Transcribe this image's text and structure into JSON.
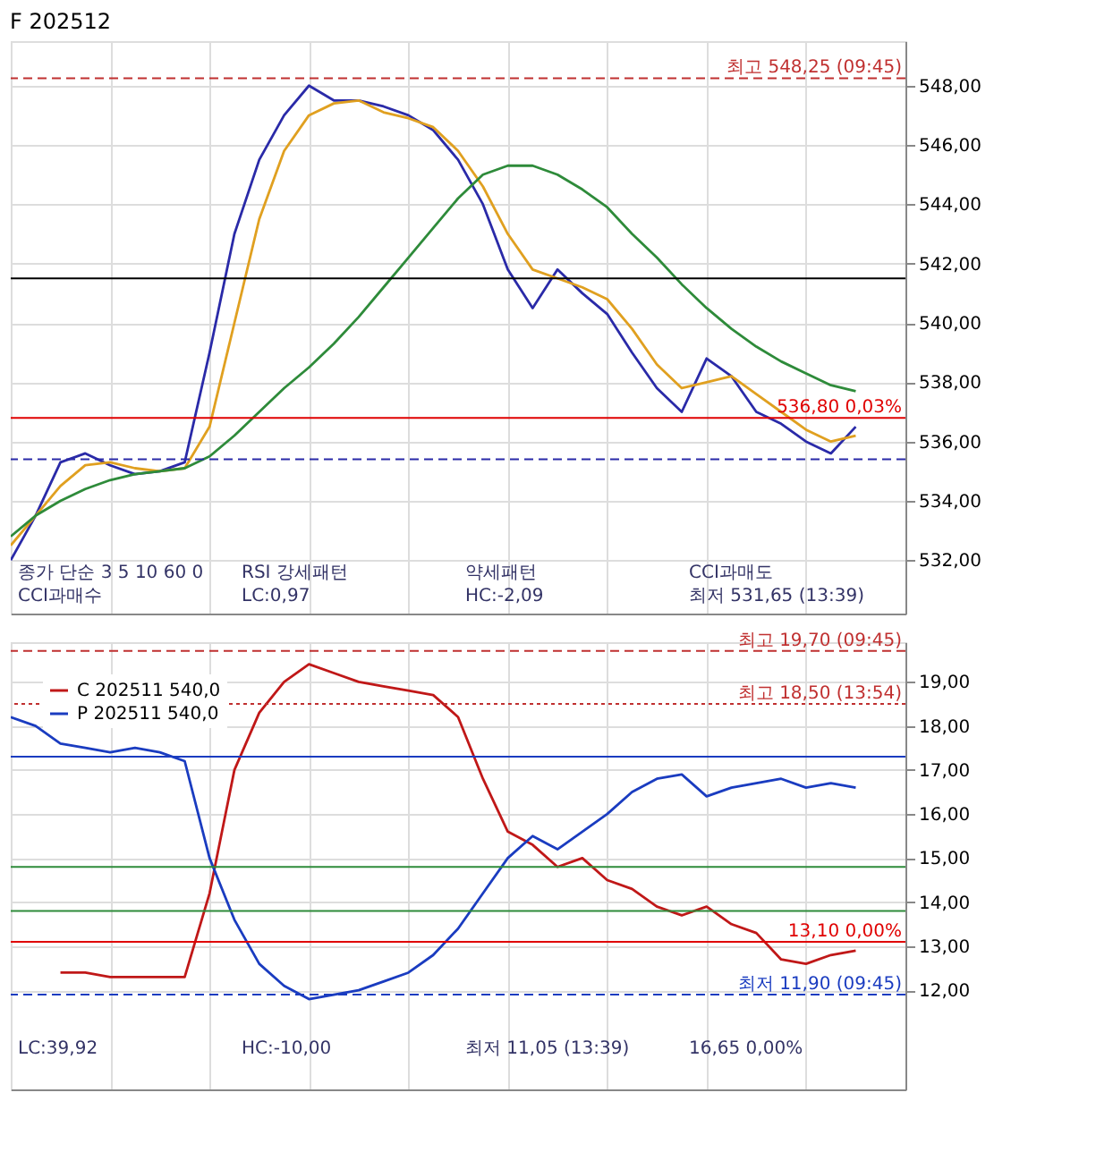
{
  "chart_data": [
    {
      "type": "line",
      "title": "F 202512",
      "annotations": [
        "종가 단순 3 5 10 60 0",
        "RSI 강세패턴",
        "약세패턴",
        "CCI과매도",
        "CCI과매수",
        "LC:0,97",
        "HC:-2,09",
        "최저 531,65 (13:39)"
      ],
      "categories": [
        null,
        null,
        null,
        null,
        null,
        null,
        null,
        null,
        null,
        null,
        null,
        null,
        null,
        null,
        null,
        null,
        null,
        null,
        null,
        null,
        null,
        null,
        null,
        null,
        null,
        null,
        null,
        null,
        null,
        null,
        null,
        null,
        null,
        null,
        null,
        null,
        null
      ],
      "series": [
        {
          "color": "#2a2aa8",
          "values": [
            532.0,
            533.5,
            535.3,
            535.6,
            535.2,
            534.9,
            535.0,
            535.3,
            539.0,
            543.0,
            545.5,
            547.0,
            548.0,
            547.5,
            547.5,
            547.3,
            547.0,
            546.5,
            545.5,
            544.0,
            541.8,
            540.5,
            541.8,
            541.0,
            540.3,
            539.0,
            537.8,
            537.0,
            538.8,
            538.2,
            537.0,
            536.6,
            536.0,
            535.6,
            536.5,
            null,
            null
          ]
        },
        {
          "color": "#e0a020",
          "values": [
            532.5,
            533.5,
            534.5,
            535.2,
            535.3,
            535.1,
            535.0,
            535.1,
            536.5,
            540.0,
            543.5,
            545.8,
            547.0,
            547.4,
            547.5,
            547.1,
            546.9,
            546.6,
            545.8,
            544.6,
            543.0,
            541.8,
            541.5,
            541.2,
            540.8,
            539.8,
            538.6,
            537.8,
            538.0,
            538.2,
            537.6,
            537.0,
            536.4,
            536.0,
            536.2,
            null,
            null
          ]
        },
        {
          "color": "#2e8b3a",
          "values": [
            532.8,
            533.5,
            534.0,
            534.4,
            534.7,
            534.9,
            535.0,
            535.1,
            535.5,
            536.2,
            537.0,
            537.8,
            538.5,
            539.3,
            540.2,
            541.2,
            542.2,
            543.2,
            544.2,
            545.0,
            545.3,
            545.3,
            545.0,
            544.5,
            543.9,
            543.0,
            542.2,
            541.3,
            540.5,
            539.8,
            539.2,
            538.7,
            538.3,
            537.9,
            537.7,
            null,
            null
          ]
        }
      ],
      "ylim": [
        530.2,
        549.5
      ],
      "yticks": [
        {
          "value": 532,
          "label": "532,00"
        },
        {
          "value": 534,
          "label": "534,00"
        },
        {
          "value": 536,
          "label": "536,00"
        },
        {
          "value": 538,
          "label": "538,00"
        },
        {
          "value": 540,
          "label": "540,00"
        },
        {
          "value": 542,
          "label": "542,00"
        },
        {
          "value": 544,
          "label": "544,00"
        },
        {
          "value": 546,
          "label": "546,00"
        },
        {
          "value": 548,
          "label": "548,00"
        }
      ],
      "ref_lines": [
        {
          "axis": "y",
          "value": 548.25,
          "label": "최고 548,25 (09:45)",
          "color": "#c03030",
          "line_style": "dashed"
        },
        {
          "axis": "y",
          "value": 541.5,
          "color": "#000000",
          "line_style": "solid"
        },
        {
          "axis": "y",
          "value": 536.8,
          "label": "536,80 0,03%",
          "color": "#e00000",
          "line_style": "solid"
        },
        {
          "axis": "y",
          "value": 535.4,
          "color": "#2a2aa8",
          "line_style": "dashed"
        }
      ],
      "grid": true,
      "tick_labels": "y",
      "legend": false
    },
    {
      "type": "line",
      "annotations": [
        "LC:39,92",
        "HC:-10,00",
        "최저 11,05 (13:39)",
        "16,65 0,00%"
      ],
      "categories": [
        null,
        null,
        null,
        null,
        null,
        null,
        null,
        null,
        null,
        null,
        null,
        null,
        null,
        null,
        null,
        null,
        null,
        null,
        null,
        null,
        null,
        null,
        null,
        null,
        null,
        null,
        null,
        null,
        null,
        null,
        null,
        null,
        null,
        null,
        null,
        null,
        null
      ],
      "series": [
        {
          "name": "C 202511 540,0",
          "color": "#c01818",
          "values": [
            null,
            null,
            12.4,
            12.4,
            12.3,
            12.3,
            12.3,
            12.3,
            14.2,
            17.0,
            18.3,
            19.0,
            19.4,
            19.2,
            19.0,
            18.9,
            18.8,
            18.7,
            18.2,
            16.8,
            15.6,
            15.3,
            14.8,
            15.0,
            14.5,
            14.3,
            13.9,
            13.7,
            13.9,
            13.5,
            13.3,
            12.7,
            12.6,
            12.8,
            12.9,
            null,
            null
          ]
        },
        {
          "name": "P 202511 540,0",
          "color": "#1a3cc0",
          "values": [
            18.2,
            18.0,
            17.6,
            17.5,
            17.4,
            17.5,
            17.4,
            17.2,
            15.0,
            13.6,
            12.6,
            12.1,
            11.8,
            11.9,
            12.0,
            12.2,
            12.4,
            12.8,
            13.4,
            14.2,
            15.0,
            15.5,
            15.2,
            15.6,
            16.0,
            16.5,
            16.8,
            16.9,
            16.4,
            16.6,
            16.7,
            16.8,
            16.6,
            16.7,
            16.6,
            null,
            null
          ]
        }
      ],
      "ylim": [
        9.75,
        19.9
      ],
      "yticks": [
        {
          "value": 12,
          "label": "12,00"
        },
        {
          "value": 13,
          "label": "13,00"
        },
        {
          "value": 14,
          "label": "14,00"
        },
        {
          "value": 15,
          "label": "15,00"
        },
        {
          "value": 16,
          "label": "16,00"
        },
        {
          "value": 17,
          "label": "17,00"
        },
        {
          "value": 18,
          "label": "18,00"
        },
        {
          "value": 19,
          "label": "19,00"
        }
      ],
      "ref_lines": [
        {
          "axis": "y",
          "value": 19.7,
          "label": "최고 19,70 (09:45)",
          "color": "#c03030",
          "line_style": "dashed"
        },
        {
          "axis": "y",
          "value": 18.5,
          "label": "최고 18,50 (13:54)",
          "color": "#c03030",
          "line_style": "dotted"
        },
        {
          "axis": "y",
          "value": 17.3,
          "color": "#1a3cc0",
          "line_style": "solid"
        },
        {
          "axis": "y",
          "value": 14.8,
          "color": "#2e8b3a",
          "line_style": "solid"
        },
        {
          "axis": "y",
          "value": 13.8,
          "color": "#2e8b3a",
          "line_style": "solid"
        },
        {
          "axis": "y",
          "value": 13.1,
          "label": "13,10 0,00%",
          "color": "#e00000",
          "line_style": "solid"
        },
        {
          "axis": "y",
          "value": 11.9,
          "label": "최저 11,90 (09:45)",
          "color": "#1a3cc0",
          "line_style": "dashed"
        }
      ],
      "grid": true,
      "tick_labels": "y",
      "legend": "top left"
    }
  ]
}
